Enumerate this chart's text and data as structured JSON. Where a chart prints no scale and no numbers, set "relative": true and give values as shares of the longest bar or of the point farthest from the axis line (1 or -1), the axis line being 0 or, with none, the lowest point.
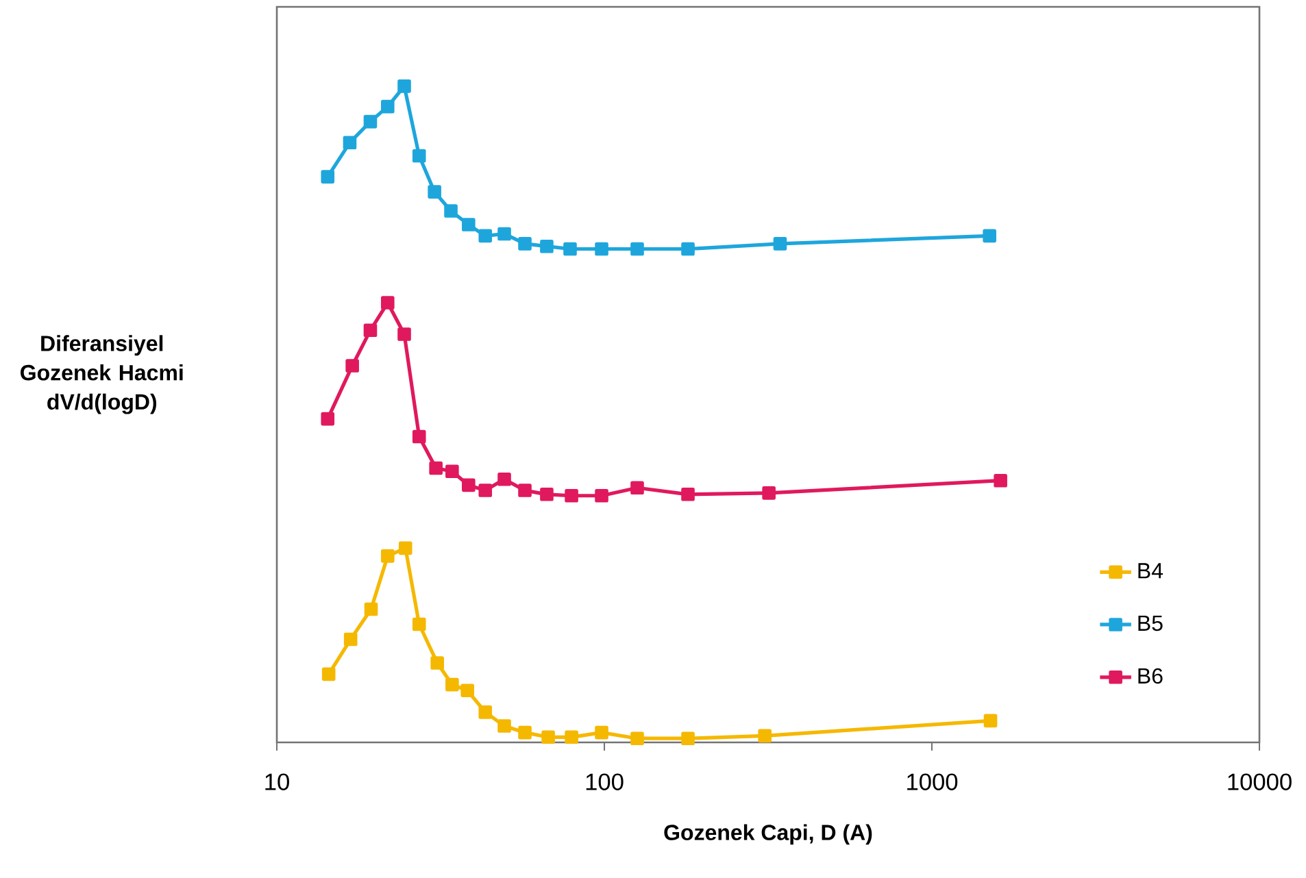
{
  "chart_data": {
    "type": "line",
    "relative": true,
    "log": "x",
    "marker": "square",
    "line_style": "solid",
    "legend": "right",
    "grid": false,
    "xlabel": "Gozenek Capi, D (A)",
    "ylabel": "Diferansiyel Gozenek Hacmi dV/d(logD)",
    "xlim": [
      10,
      10000
    ],
    "xticks": [
      10,
      100,
      1000,
      10000
    ],
    "series": [
      {
        "name": "B4",
        "color": "#f5b800",
        "x": [
          14.4,
          16.8,
          19.4,
          21.8,
          24.7,
          27.2,
          30.9,
          34.3,
          38.2,
          43.3,
          49.5,
          57.2,
          67.4,
          79.4,
          98.1,
          126,
          180,
          309,
          1510
        ],
        "values": [
          0.104,
          0.157,
          0.203,
          0.284,
          0.296,
          0.18,
          0.121,
          0.088,
          0.079,
          0.046,
          0.025,
          0.015,
          0.008,
          0.008,
          0.015,
          0.006,
          0.006,
          0.01,
          0.033
        ]
      },
      {
        "name": "B5",
        "color": "#1ea6dc",
        "x": [
          14.3,
          16.7,
          19.3,
          21.8,
          24.5,
          27.2,
          30.3,
          34.0,
          38.5,
          43.3,
          49.5,
          57.2,
          66.7,
          78.6,
          98.1,
          126,
          180,
          344,
          1500
        ],
        "values": [
          0.862,
          0.914,
          0.946,
          0.969,
          1.0,
          0.894,
          0.839,
          0.81,
          0.789,
          0.772,
          0.775,
          0.76,
          0.756,
          0.752,
          0.752,
          0.752,
          0.752,
          0.76,
          0.772
        ]
      },
      {
        "name": "B6",
        "color": "#e0195e",
        "x": [
          14.3,
          17.0,
          19.3,
          21.8,
          24.5,
          27.2,
          30.6,
          34.3,
          38.5,
          43.3,
          49.5,
          57.2,
          66.7,
          79.4,
          98.1,
          126,
          180,
          318,
          1620
        ],
        "values": [
          0.493,
          0.574,
          0.628,
          0.67,
          0.622,
          0.466,
          0.418,
          0.413,
          0.392,
          0.384,
          0.401,
          0.384,
          0.378,
          0.376,
          0.376,
          0.388,
          0.378,
          0.38,
          0.399
        ]
      }
    ]
  }
}
